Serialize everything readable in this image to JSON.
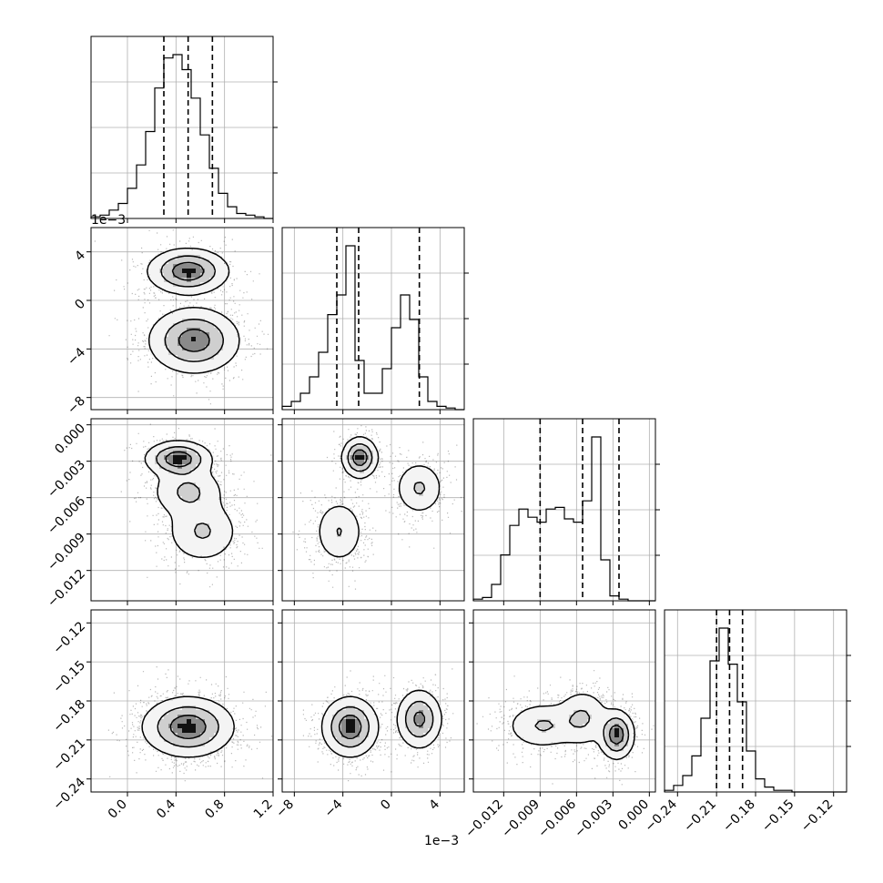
{
  "chart_data": {
    "type": "corner",
    "parameters": [
      {
        "id": "p0",
        "range": [
          -0.3,
          1.2
        ],
        "ticks": [
          0.0,
          0.4,
          0.8,
          1.2
        ],
        "tick_labels": [
          "0.0",
          "0.4",
          "0.8",
          "1.2"
        ],
        "offset_text": "",
        "quantiles": [
          0.3,
          0.5,
          0.7
        ],
        "mean": 0.5,
        "std": 0.18
      },
      {
        "id": "p1",
        "range": [
          -9.0,
          6.0
        ],
        "ticks": [
          -8,
          -4,
          0,
          4
        ],
        "tick_labels": [
          "−8",
          "−4",
          "0",
          "4"
        ],
        "offset_text": "1e−3",
        "quantiles": [
          -4.5,
          -2.7,
          2.3
        ],
        "modes": [
          {
            "mu": -3.0,
            "sd": 1.1,
            "w": 0.6
          },
          {
            "mu": 2.3,
            "sd": 1.0,
            "w": 0.4
          }
        ]
      },
      {
        "id": "p2",
        "range": [
          -0.0145,
          0.0005
        ],
        "ticks": [
          -0.012,
          -0.009,
          -0.006,
          -0.003,
          0.0
        ],
        "tick_labels": [
          "−0.012",
          "−0.009",
          "−0.006",
          "−0.003",
          "0.000"
        ],
        "offset_text": "",
        "quantiles": [
          -0.009,
          -0.0055,
          -0.0025
        ],
        "modes": [
          {
            "mu": -0.0088,
            "sd": 0.0015,
            "w": 0.33
          },
          {
            "mu": -0.0054,
            "sd": 0.0011,
            "w": 0.3
          },
          {
            "mu": -0.0027,
            "sd": 0.0007,
            "w": 0.37
          }
        ]
      },
      {
        "id": "p3",
        "range": [
          -0.25,
          -0.11
        ],
        "ticks": [
          -0.24,
          -0.21,
          -0.18,
          -0.15,
          -0.12
        ],
        "tick_labels": [
          "−0.24",
          "−0.21",
          "−0.18",
          "−0.15",
          "−0.12"
        ],
        "offset_text": "",
        "quantiles": [
          -0.21,
          -0.2,
          -0.19
        ],
        "mean": -0.2,
        "std": 0.011
      }
    ],
    "clusters_2d": {
      "1_0": [
        {
          "x": 0.5,
          "y": 2.4,
          "sx": 0.16,
          "sy": 0.9,
          "w": 0.4
        },
        {
          "x": 0.55,
          "y": -3.3,
          "sx": 0.18,
          "sy": 1.3,
          "w": 0.6
        }
      ],
      "2_0": [
        {
          "x": 0.42,
          "y": -0.0028,
          "sx": 0.13,
          "sy": 0.0007,
          "w": 0.37
        },
        {
          "x": 0.5,
          "y": -0.0055,
          "sx": 0.15,
          "sy": 0.0011,
          "w": 0.3
        },
        {
          "x": 0.62,
          "y": -0.0088,
          "sx": 0.15,
          "sy": 0.0013,
          "w": 0.33
        }
      ],
      "2_1": [
        {
          "x": -2.6,
          "y": -0.0027,
          "sx": 0.7,
          "sy": 0.0008,
          "w": 0.37
        },
        {
          "x": 2.3,
          "y": -0.0052,
          "sx": 1.0,
          "sy": 0.0011,
          "w": 0.3
        },
        {
          "x": -4.3,
          "y": -0.0088,
          "sx": 1.0,
          "sy": 0.0013,
          "w": 0.33
        }
      ],
      "3_0": [
        {
          "x": 0.5,
          "y": -0.2,
          "sx": 0.18,
          "sy": 0.011,
          "w": 1.0
        }
      ],
      "3_1": [
        {
          "x": -3.4,
          "y": -0.2,
          "sx": 1.1,
          "sy": 0.011,
          "w": 0.6
        },
        {
          "x": 2.3,
          "y": -0.194,
          "sx": 0.9,
          "sy": 0.011,
          "w": 0.4
        }
      ],
      "3_2": [
        {
          "x": -0.0088,
          "y": -0.199,
          "sx": 0.0015,
          "sy": 0.009,
          "w": 0.33
        },
        {
          "x": -0.0055,
          "y": -0.193,
          "sx": 0.0011,
          "sy": 0.011,
          "w": 0.3
        },
        {
          "x": -0.0027,
          "y": -0.206,
          "sx": 0.0007,
          "sy": 0.009,
          "w": 0.37
        }
      ]
    },
    "histograms": {
      "0": {
        "bins": 20,
        "counts": [
          1,
          2,
          5,
          9,
          18,
          32,
          52,
          78,
          96,
          98,
          89,
          72,
          50,
          30,
          15,
          7,
          3,
          2,
          1,
          0
        ]
      },
      "1": {
        "bins": 20,
        "counts": [
          2,
          5,
          10,
          20,
          35,
          58,
          70,
          100,
          30,
          10,
          10,
          25,
          50,
          70,
          55,
          20,
          5,
          2,
          1,
          0
        ]
      },
      "2": {
        "bins": 20,
        "counts": [
          1,
          2,
          10,
          28,
          46,
          56,
          51,
          48,
          56,
          57,
          50,
          48,
          61,
          100,
          25,
          3,
          1,
          0,
          0,
          0
        ]
      },
      "3": {
        "bins": 20,
        "counts": [
          1,
          4,
          10,
          22,
          45,
          80,
          100,
          78,
          55,
          25,
          8,
          3,
          1,
          1,
          0,
          0,
          0,
          0,
          0,
          0
        ]
      }
    },
    "contour_levels": [
      "39%",
      "86%",
      "99%"
    ],
    "grid": true
  }
}
